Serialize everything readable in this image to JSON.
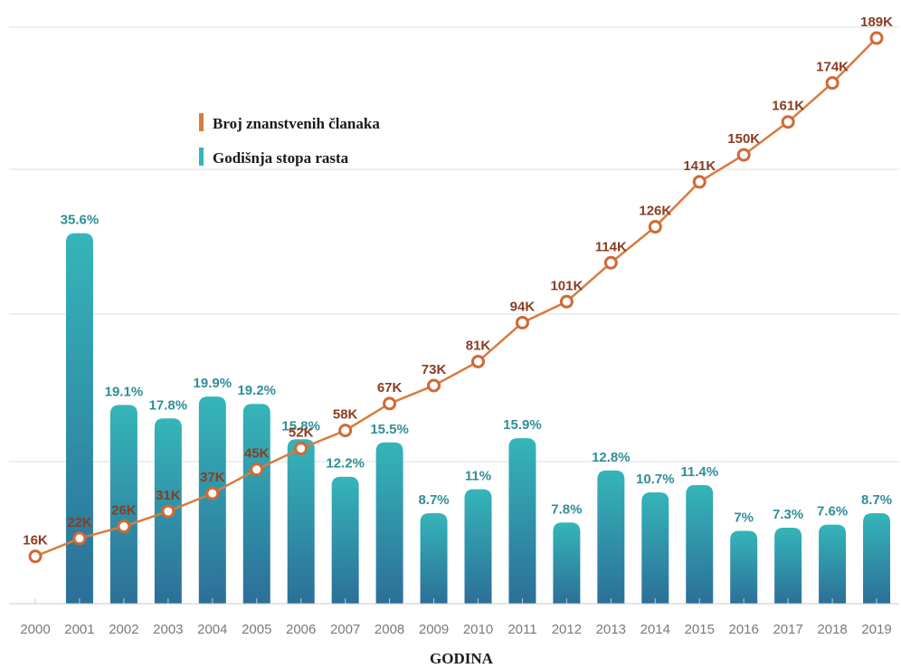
{
  "chart_data": {
    "type": "bar",
    "xlabel": "GODINA",
    "categories": [
      "2000",
      "2001",
      "2002",
      "2003",
      "2004",
      "2005",
      "2006",
      "2007",
      "2008",
      "2009",
      "2010",
      "2011",
      "2012",
      "2013",
      "2014",
      "2015",
      "2016",
      "2017",
      "2018",
      "2019"
    ],
    "series": [
      {
        "name": "Broj znanstvenih članaka",
        "type": "line",
        "color": "#d97b3f",
        "values": [
          16,
          22,
          26,
          31,
          37,
          45,
          52,
          58,
          67,
          73,
          81,
          94,
          101,
          114,
          126,
          141,
          150,
          161,
          174,
          189
        ],
        "labels": [
          "16K",
          "22K",
          "26K",
          "31K",
          "37K",
          "45K",
          "52K",
          "58K",
          "67K",
          "73K",
          "81K",
          "94K",
          "101K",
          "114K",
          "126K",
          "141K",
          "150K",
          "161K",
          "174K",
          "189K"
        ]
      },
      {
        "name": "Godišnja stopa rasta",
        "type": "bar",
        "color": "#2a8ea3",
        "values": [
          null,
          35.6,
          19.1,
          17.8,
          19.9,
          19.2,
          15.8,
          12.2,
          15.5,
          8.7,
          11,
          15.9,
          7.8,
          12.8,
          10.7,
          11.4,
          7,
          7.3,
          7.6,
          8.7
        ],
        "labels": [
          "",
          "35.6%",
          "19.1%",
          "17.8%",
          "19.9%",
          "19.2%",
          "15.8%",
          "12.2%",
          "15.5%",
          "8.7%",
          "11%",
          "15.9%",
          "7.8%",
          "12.8%",
          "10.7%",
          "11.4%",
          "7%",
          "7.3%",
          "7.6%",
          "8.7%"
        ]
      }
    ],
    "grid": true,
    "legend_position": "top-left"
  }
}
